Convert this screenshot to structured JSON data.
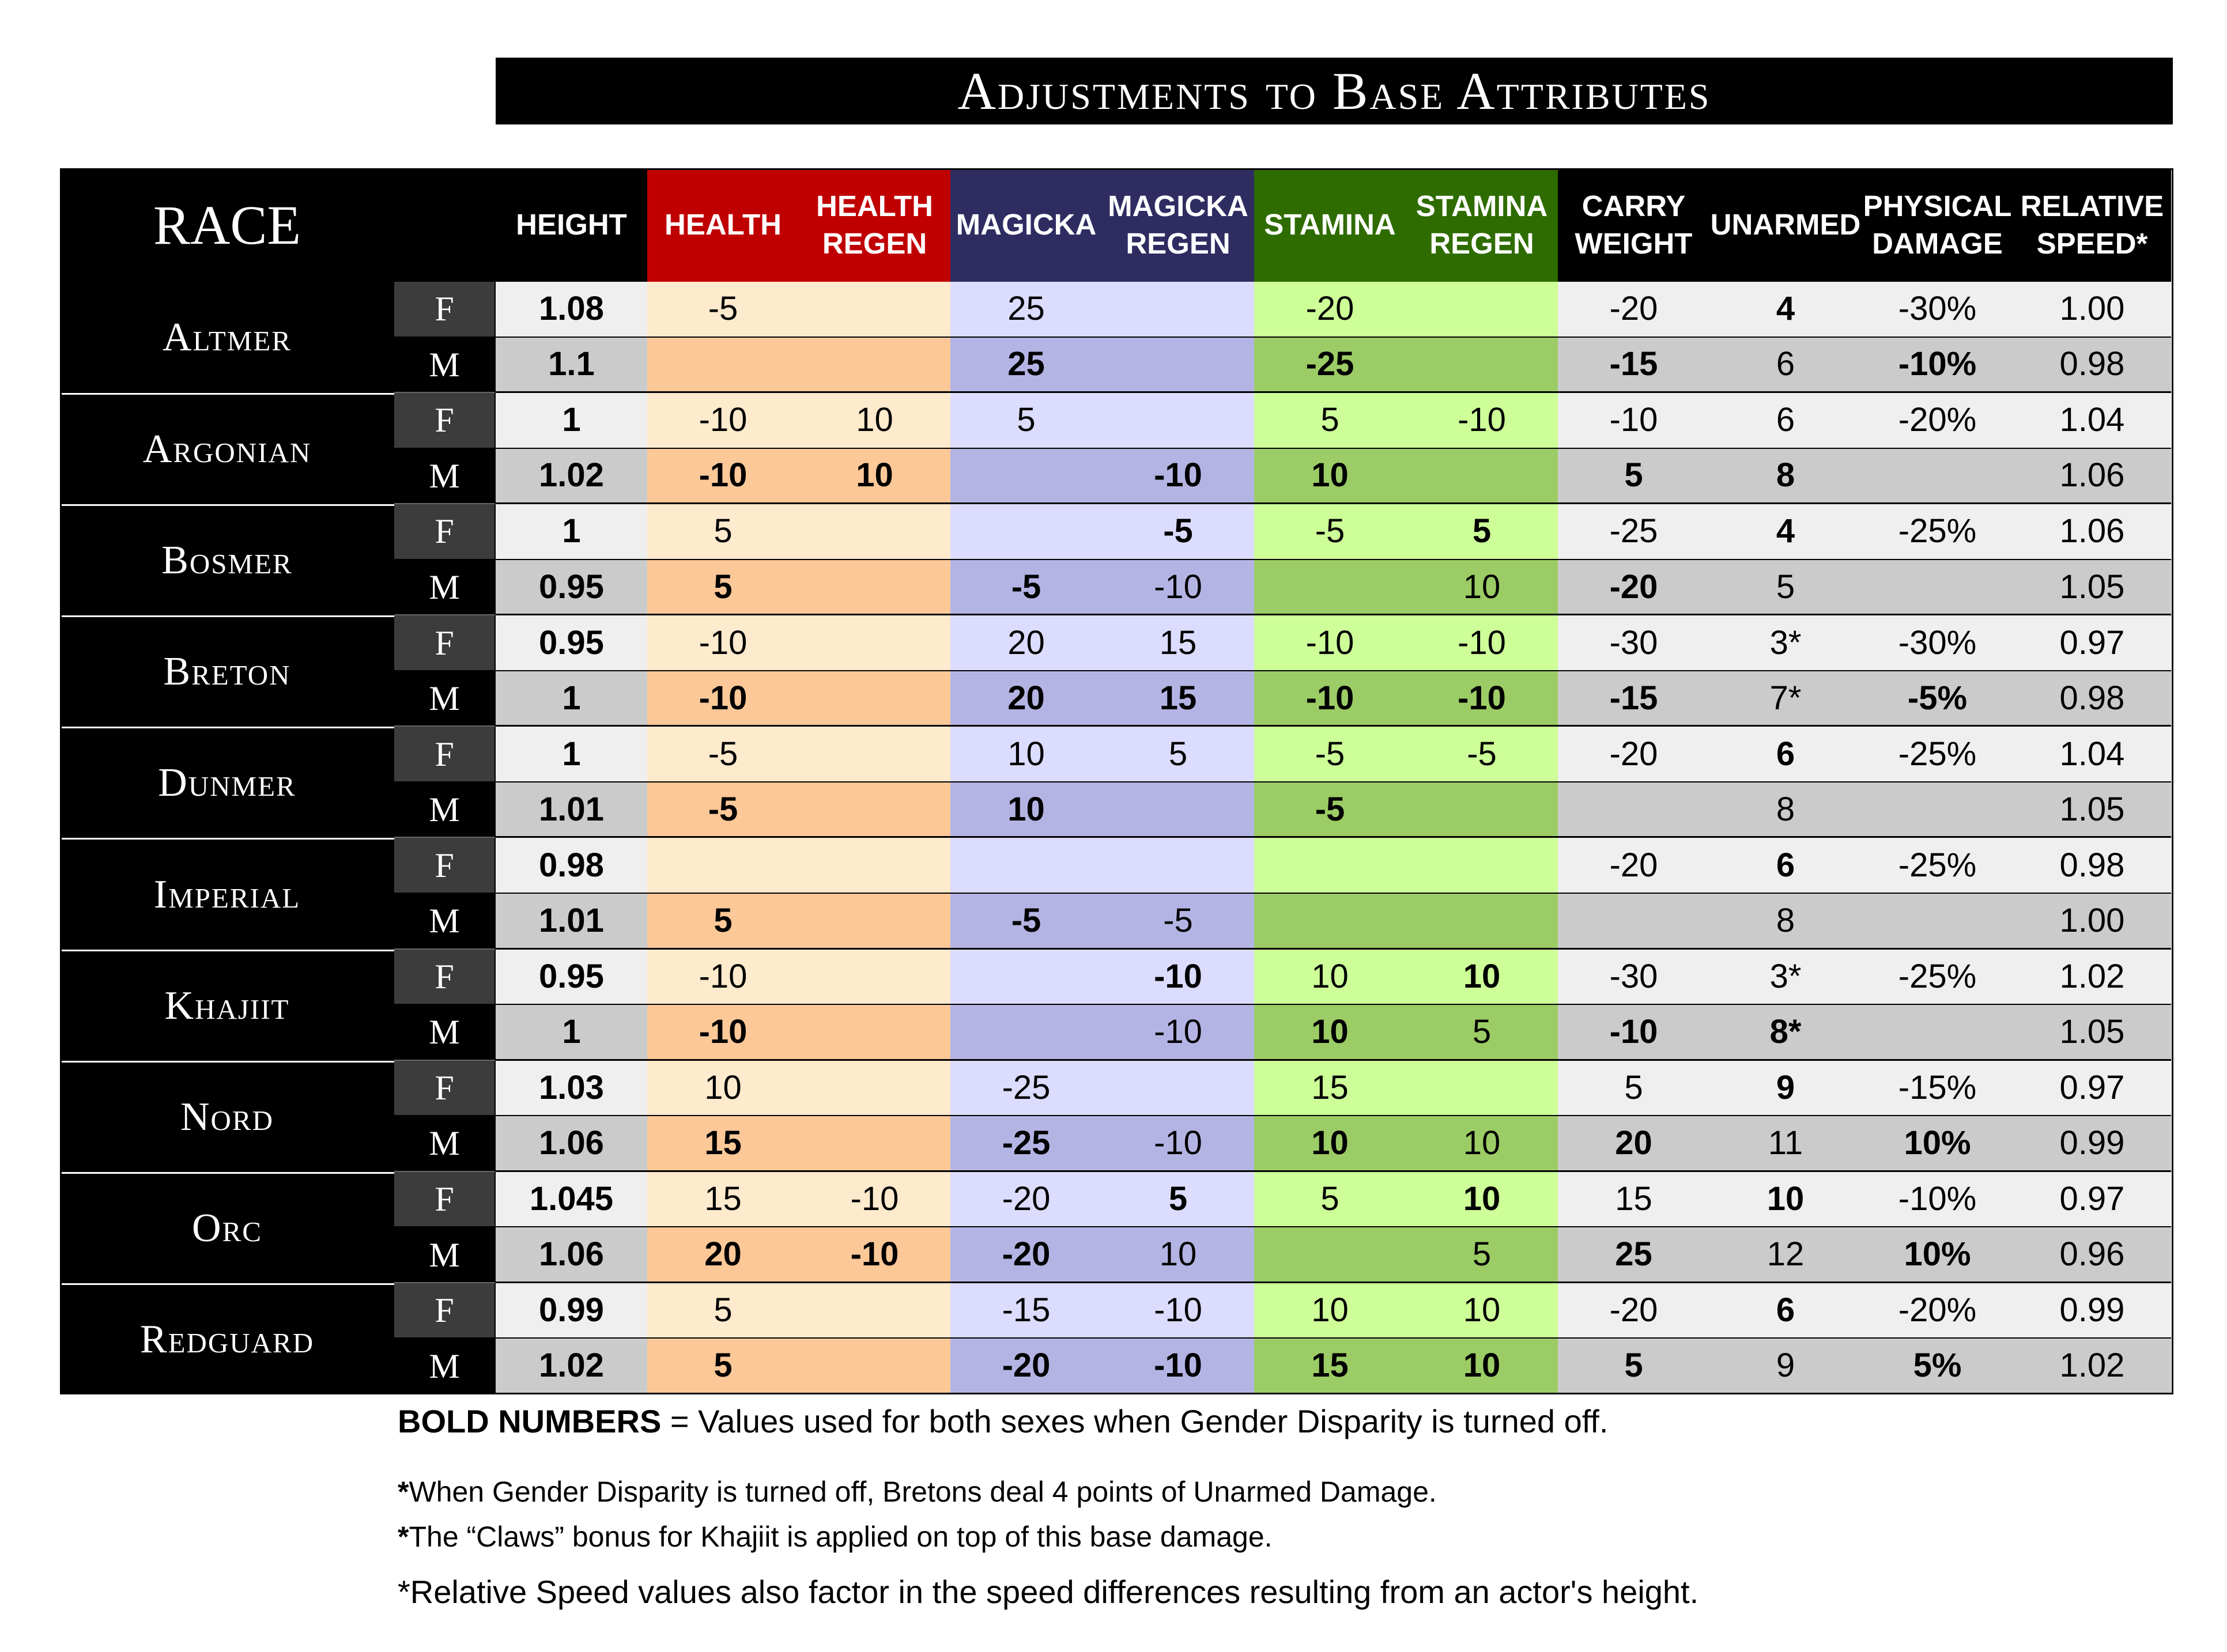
{
  "title": "Adjustments to Base Attributes",
  "headers": [
    "RACE",
    "",
    "HEIGHT",
    "HEALTH",
    "HEALTH\nREGEN",
    "MAGICKA",
    "MAGICKA\nREGEN",
    "STAMINA",
    "STAMINA\nREGEN",
    "CARRY\nWEIGHT",
    "UNARMED",
    "PHYSICAL\nDAMAGE",
    "RELATIVE\nSPEED*"
  ],
  "races": [
    {
      "name": "Altmer",
      "F": [
        {
          "v": "1.08",
          "b": true
        },
        {
          "v": "-5",
          "b": false
        },
        {
          "v": "",
          "b": false
        },
        {
          "v": "25",
          "b": false
        },
        {
          "v": "",
          "b": false
        },
        {
          "v": "-20",
          "b": false
        },
        {
          "v": "",
          "b": false
        },
        {
          "v": "-20",
          "b": false
        },
        {
          "v": "4",
          "b": true
        },
        {
          "v": "-30%",
          "b": false
        },
        {
          "v": "1.00",
          "b": false
        }
      ],
      "M": [
        {
          "v": "1.1",
          "b": true
        },
        {
          "v": "",
          "b": false
        },
        {
          "v": "",
          "b": false
        },
        {
          "v": "25",
          "b": true
        },
        {
          "v": "",
          "b": false
        },
        {
          "v": "-25",
          "b": true
        },
        {
          "v": "",
          "b": false
        },
        {
          "v": "-15",
          "b": true
        },
        {
          "v": "6",
          "b": false
        },
        {
          "v": "-10%",
          "b": true
        },
        {
          "v": "0.98",
          "b": false
        }
      ]
    },
    {
      "name": "Argonian",
      "F": [
        {
          "v": "1",
          "b": true
        },
        {
          "v": "-10",
          "b": false
        },
        {
          "v": "10",
          "b": false
        },
        {
          "v": "5",
          "b": false
        },
        {
          "v": "",
          "b": false
        },
        {
          "v": "5",
          "b": false
        },
        {
          "v": "-10",
          "b": false
        },
        {
          "v": "-10",
          "b": false
        },
        {
          "v": "6",
          "b": false
        },
        {
          "v": "-20%",
          "b": false
        },
        {
          "v": "1.04",
          "b": false
        }
      ],
      "M": [
        {
          "v": "1.02",
          "b": true
        },
        {
          "v": "-10",
          "b": true
        },
        {
          "v": "10",
          "b": true
        },
        {
          "v": "",
          "b": false
        },
        {
          "v": "-10",
          "b": true
        },
        {
          "v": "10",
          "b": true
        },
        {
          "v": "",
          "b": false
        },
        {
          "v": "5",
          "b": true
        },
        {
          "v": "8",
          "b": true
        },
        {
          "v": "",
          "b": false
        },
        {
          "v": "1.06",
          "b": false
        }
      ]
    },
    {
      "name": "Bosmer",
      "F": [
        {
          "v": "1",
          "b": true
        },
        {
          "v": "5",
          "b": false
        },
        {
          "v": "",
          "b": false
        },
        {
          "v": "",
          "b": false
        },
        {
          "v": "-5",
          "b": true
        },
        {
          "v": "-5",
          "b": false
        },
        {
          "v": "5",
          "b": true
        },
        {
          "v": "-25",
          "b": false
        },
        {
          "v": "4",
          "b": true
        },
        {
          "v": "-25%",
          "b": false
        },
        {
          "v": "1.06",
          "b": false
        }
      ],
      "M": [
        {
          "v": "0.95",
          "b": true
        },
        {
          "v": "5",
          "b": true
        },
        {
          "v": "",
          "b": false
        },
        {
          "v": "-5",
          "b": true
        },
        {
          "v": "-10",
          "b": false
        },
        {
          "v": "",
          "b": false
        },
        {
          "v": "10",
          "b": false
        },
        {
          "v": "-20",
          "b": true
        },
        {
          "v": "5",
          "b": false
        },
        {
          "v": "",
          "b": false
        },
        {
          "v": "1.05",
          "b": false
        }
      ]
    },
    {
      "name": "Breton",
      "F": [
        {
          "v": "0.95",
          "b": true
        },
        {
          "v": "-10",
          "b": false
        },
        {
          "v": "",
          "b": false
        },
        {
          "v": "20",
          "b": false
        },
        {
          "v": "15",
          "b": false
        },
        {
          "v": "-10",
          "b": false
        },
        {
          "v": "-10",
          "b": false
        },
        {
          "v": "-30",
          "b": false
        },
        {
          "v": "3*",
          "b": false
        },
        {
          "v": "-30%",
          "b": false
        },
        {
          "v": "0.97",
          "b": false
        }
      ],
      "M": [
        {
          "v": "1",
          "b": true
        },
        {
          "v": "-10",
          "b": true
        },
        {
          "v": "",
          "b": false
        },
        {
          "v": "20",
          "b": true
        },
        {
          "v": "15",
          "b": true
        },
        {
          "v": "-10",
          "b": true
        },
        {
          "v": "-10",
          "b": true
        },
        {
          "v": "-15",
          "b": true
        },
        {
          "v": "7*",
          "b": false
        },
        {
          "v": "-5%",
          "b": true
        },
        {
          "v": "0.98",
          "b": false
        }
      ]
    },
    {
      "name": "Dunmer",
      "F": [
        {
          "v": "1",
          "b": true
        },
        {
          "v": "-5",
          "b": false
        },
        {
          "v": "",
          "b": false
        },
        {
          "v": "10",
          "b": false
        },
        {
          "v": "5",
          "b": false
        },
        {
          "v": "-5",
          "b": false
        },
        {
          "v": "-5",
          "b": false
        },
        {
          "v": "-20",
          "b": false
        },
        {
          "v": "6",
          "b": true
        },
        {
          "v": "-25%",
          "b": false
        },
        {
          "v": "1.04",
          "b": false
        }
      ],
      "M": [
        {
          "v": "1.01",
          "b": true
        },
        {
          "v": "-5",
          "b": true
        },
        {
          "v": "",
          "b": false
        },
        {
          "v": "10",
          "b": true
        },
        {
          "v": "",
          "b": false
        },
        {
          "v": "-5",
          "b": true
        },
        {
          "v": "",
          "b": false
        },
        {
          "v": "",
          "b": false
        },
        {
          "v": "8",
          "b": false
        },
        {
          "v": "",
          "b": false
        },
        {
          "v": "1.05",
          "b": false
        }
      ]
    },
    {
      "name": "Imperial",
      "F": [
        {
          "v": "0.98",
          "b": true
        },
        {
          "v": "",
          "b": false
        },
        {
          "v": "",
          "b": false
        },
        {
          "v": "",
          "b": false
        },
        {
          "v": "",
          "b": false
        },
        {
          "v": "",
          "b": false
        },
        {
          "v": "",
          "b": false
        },
        {
          "v": "-20",
          "b": false
        },
        {
          "v": "6",
          "b": true
        },
        {
          "v": "-25%",
          "b": false
        },
        {
          "v": "0.98",
          "b": false
        }
      ],
      "M": [
        {
          "v": "1.01",
          "b": true
        },
        {
          "v": "5",
          "b": true
        },
        {
          "v": "",
          "b": false
        },
        {
          "v": "-5",
          "b": true
        },
        {
          "v": "-5",
          "b": false
        },
        {
          "v": "",
          "b": false
        },
        {
          "v": "",
          "b": false
        },
        {
          "v": "",
          "b": false
        },
        {
          "v": "8",
          "b": false
        },
        {
          "v": "",
          "b": false
        },
        {
          "v": "1.00",
          "b": false
        }
      ]
    },
    {
      "name": "Khajiit",
      "F": [
        {
          "v": "0.95",
          "b": true
        },
        {
          "v": "-10",
          "b": false
        },
        {
          "v": "",
          "b": false
        },
        {
          "v": "",
          "b": false
        },
        {
          "v": "-10",
          "b": true
        },
        {
          "v": "10",
          "b": false
        },
        {
          "v": "10",
          "b": true
        },
        {
          "v": "-30",
          "b": false
        },
        {
          "v": "3*",
          "b": false
        },
        {
          "v": "-25%",
          "b": false
        },
        {
          "v": "1.02",
          "b": false
        }
      ],
      "M": [
        {
          "v": "1",
          "b": true
        },
        {
          "v": "-10",
          "b": true
        },
        {
          "v": "",
          "b": false
        },
        {
          "v": "",
          "b": false
        },
        {
          "v": "-10",
          "b": false
        },
        {
          "v": "10",
          "b": true
        },
        {
          "v": "5",
          "b": false
        },
        {
          "v": "-10",
          "b": true
        },
        {
          "v": "8*",
          "b": true
        },
        {
          "v": "",
          "b": false
        },
        {
          "v": "1.05",
          "b": false
        }
      ]
    },
    {
      "name": "Nord",
      "F": [
        {
          "v": "1.03",
          "b": true
        },
        {
          "v": "10",
          "b": false
        },
        {
          "v": "",
          "b": false
        },
        {
          "v": "-25",
          "b": false
        },
        {
          "v": "",
          "b": false
        },
        {
          "v": "15",
          "b": false
        },
        {
          "v": "",
          "b": false
        },
        {
          "v": "5",
          "b": false
        },
        {
          "v": "9",
          "b": true
        },
        {
          "v": "-15%",
          "b": false
        },
        {
          "v": "0.97",
          "b": false
        }
      ],
      "M": [
        {
          "v": "1.06",
          "b": true
        },
        {
          "v": "15",
          "b": true
        },
        {
          "v": "",
          "b": false
        },
        {
          "v": "-25",
          "b": true
        },
        {
          "v": "-10",
          "b": false
        },
        {
          "v": "10",
          "b": true
        },
        {
          "v": "10",
          "b": false
        },
        {
          "v": "20",
          "b": true
        },
        {
          "v": "11",
          "b": false
        },
        {
          "v": "10%",
          "b": true
        },
        {
          "v": "0.99",
          "b": false
        }
      ]
    },
    {
      "name": "Orc",
      "F": [
        {
          "v": "1.045",
          "b": true
        },
        {
          "v": "15",
          "b": false
        },
        {
          "v": "-10",
          "b": false
        },
        {
          "v": "-20",
          "b": false
        },
        {
          "v": "5",
          "b": true
        },
        {
          "v": "5",
          "b": false
        },
        {
          "v": "10",
          "b": true
        },
        {
          "v": "15",
          "b": false
        },
        {
          "v": "10",
          "b": true
        },
        {
          "v": "-10%",
          "b": false
        },
        {
          "v": "0.97",
          "b": false
        }
      ],
      "M": [
        {
          "v": "1.06",
          "b": true
        },
        {
          "v": "20",
          "b": true
        },
        {
          "v": "-10",
          "b": true
        },
        {
          "v": "-20",
          "b": true
        },
        {
          "v": "10",
          "b": false
        },
        {
          "v": "",
          "b": false
        },
        {
          "v": "5",
          "b": false
        },
        {
          "v": "25",
          "b": true
        },
        {
          "v": "12",
          "b": false
        },
        {
          "v": "10%",
          "b": true
        },
        {
          "v": "0.96",
          "b": false
        }
      ]
    },
    {
      "name": "Redguard",
      "F": [
        {
          "v": "0.99",
          "b": true
        },
        {
          "v": "5",
          "b": false
        },
        {
          "v": "",
          "b": false
        },
        {
          "v": "-15",
          "b": false
        },
        {
          "v": "-10",
          "b": false
        },
        {
          "v": "10",
          "b": false
        },
        {
          "v": "10",
          "b": false
        },
        {
          "v": "-20",
          "b": false
        },
        {
          "v": "6",
          "b": true
        },
        {
          "v": "-20%",
          "b": false
        },
        {
          "v": "0.99",
          "b": false
        }
      ],
      "M": [
        {
          "v": "1.02",
          "b": true
        },
        {
          "v": "5",
          "b": true
        },
        {
          "v": "",
          "b": false
        },
        {
          "v": "-20",
          "b": true
        },
        {
          "v": "-10",
          "b": true
        },
        {
          "v": "15",
          "b": true
        },
        {
          "v": "10",
          "b": true
        },
        {
          "v": "5",
          "b": true
        },
        {
          "v": "9",
          "b": false
        },
        {
          "v": "5%",
          "b": true
        },
        {
          "v": "1.02",
          "b": false
        }
      ]
    }
  ],
  "sex_labels": {
    "f": "F",
    "m": "M"
  },
  "notes": {
    "bold_label": "BOLD NUMBERS",
    "bold_text": " = Values used for both sexes when Gender Disparity is turned off.",
    "breton_star": "*",
    "breton_text": "When Gender Disparity is turned off, Bretons deal 4 points of Unarmed Damage.",
    "khajiit_star": "*",
    "khajiit_text": "The “Claws” bonus for Khajiit is applied on top of this base damage.",
    "speed_text": "*Relative Speed values also factor in the speed differences resulting from an actor's height."
  },
  "colors": {
    "health_header": "#c00000",
    "magicka_header": "#2e2c61",
    "stamina_header": "#2f6c00",
    "health_f": "#feeacd",
    "health_m": "#fdc898",
    "magicka_f": "#dcdcfe",
    "magicka_m": "#b4b4e4",
    "stamina_f": "#cdfe98",
    "stamina_m": "#9ccc65",
    "grey_f": "#efefef",
    "grey_m": "#cbcbcb"
  }
}
